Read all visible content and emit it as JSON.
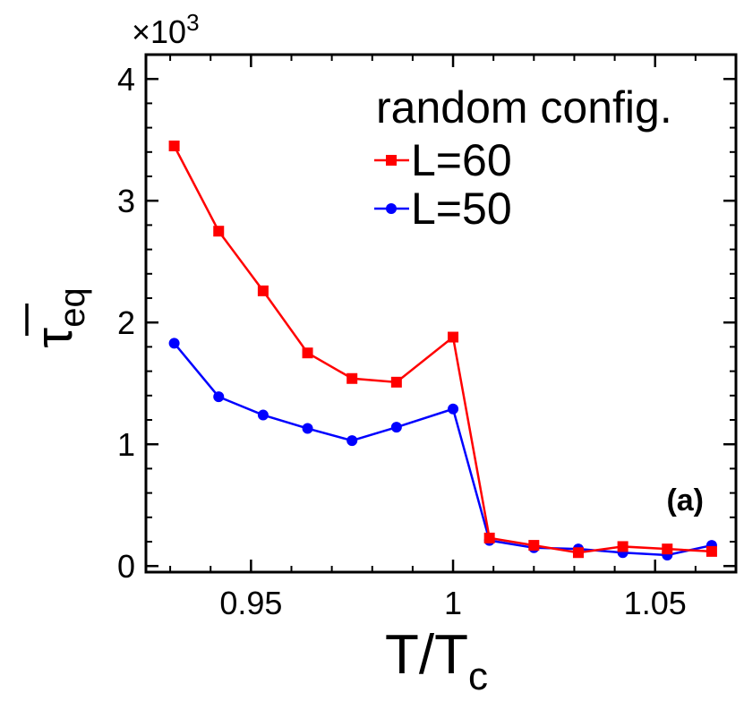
{
  "chart_data": {
    "type": "line",
    "panel_label": "(a)",
    "legend_title": "random config.",
    "legend_position": "top-right",
    "xlabel_main": "T/T",
    "xlabel_sub": "c",
    "ylabel_main": "τ",
    "ylabel_sub": "eq",
    "y_multiplier_base": "×10",
    "y_multiplier_exp": "3",
    "xlim": [
      0.924,
      1.07
    ],
    "ylim": [
      -0.05,
      4.2
    ],
    "xticks": [
      0.95,
      1,
      1.05
    ],
    "xtick_labels": [
      "0.95",
      "1",
      "1.05"
    ],
    "yticks": [
      0,
      1,
      2,
      3,
      4
    ],
    "ytick_labels": [
      "0",
      "1",
      "2",
      "3",
      "4"
    ],
    "grid": false,
    "series": [
      {
        "name": "L=60",
        "color": "#ff0000",
        "marker": "square",
        "x": [
          0.931,
          0.942,
          0.953,
          0.964,
          0.975,
          0.986,
          1.0,
          1.009,
          1.02,
          1.031,
          1.042,
          1.053,
          1.064
        ],
        "y": [
          3.45,
          2.75,
          2.26,
          1.75,
          1.54,
          1.51,
          1.88,
          0.23,
          0.17,
          0.11,
          0.16,
          0.14,
          0.12
        ]
      },
      {
        "name": "L=50",
        "color": "#0000ff",
        "marker": "circle",
        "x": [
          0.931,
          0.942,
          0.953,
          0.964,
          0.975,
          0.986,
          1.0,
          1.009,
          1.02,
          1.031,
          1.042,
          1.053,
          1.064
        ],
        "y": [
          1.83,
          1.39,
          1.24,
          1.13,
          1.03,
          1.14,
          1.29,
          0.21,
          0.15,
          0.14,
          0.11,
          0.09,
          0.17
        ]
      }
    ]
  }
}
